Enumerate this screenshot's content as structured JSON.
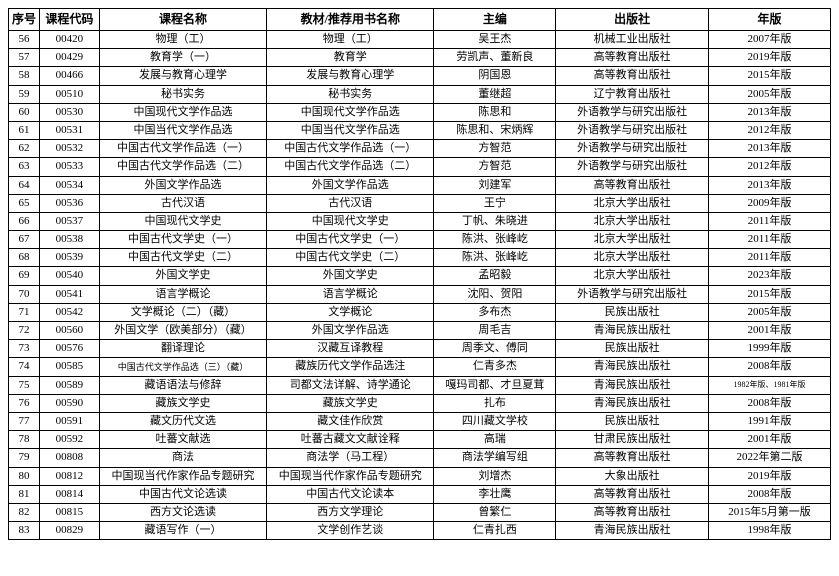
{
  "columns": [
    {
      "key": "seq",
      "label": "序号"
    },
    {
      "key": "code",
      "label": "课程代码"
    },
    {
      "key": "name",
      "label": "课程名称"
    },
    {
      "key": "book",
      "label": "教材/推荐用书名称"
    },
    {
      "key": "editor",
      "label": "主编"
    },
    {
      "key": "publisher",
      "label": "出版社"
    },
    {
      "key": "year",
      "label": "年版"
    }
  ],
  "rows": [
    {
      "seq": "56",
      "code": "00420",
      "name": "物理（工）",
      "book": "物理（工）",
      "editor": "吴王杰",
      "publisher": "机械工业出版社",
      "year": "2007年版"
    },
    {
      "seq": "57",
      "code": "00429",
      "name": "教育学（一）",
      "book": "教育学",
      "editor": "劳凯声、董新良",
      "publisher": "高等教育出版社",
      "year": "2019年版"
    },
    {
      "seq": "58",
      "code": "00466",
      "name": "发展与教育心理学",
      "book": "发展与教育心理学",
      "editor": "阴国恩",
      "publisher": "高等教育出版社",
      "year": "2015年版"
    },
    {
      "seq": "59",
      "code": "00510",
      "name": "秘书实务",
      "book": "秘书实务",
      "editor": "董继超",
      "publisher": "辽宁教育出版社",
      "year": "2005年版"
    },
    {
      "seq": "60",
      "code": "00530",
      "name": "中国现代文学作品选",
      "book": "中国现代文学作品选",
      "editor": "陈思和",
      "publisher": "外语教学与研究出版社",
      "year": "2013年版"
    },
    {
      "seq": "61",
      "code": "00531",
      "name": "中国当代文学作品选",
      "book": "中国当代文学作品选",
      "editor": "陈思和、宋炳辉",
      "publisher": "外语教学与研究出版社",
      "year": "2012年版"
    },
    {
      "seq": "62",
      "code": "00532",
      "name": "中国古代文学作品选（一）",
      "book": "中国古代文学作品选（一）",
      "editor": "方智范",
      "publisher": "外语教学与研究出版社",
      "year": "2013年版"
    },
    {
      "seq": "63",
      "code": "00533",
      "name": "中国古代文学作品选（二）",
      "book": "中国古代文学作品选（二）",
      "editor": "方智范",
      "publisher": "外语教学与研究出版社",
      "year": "2012年版"
    },
    {
      "seq": "64",
      "code": "00534",
      "name": "外国文学作品选",
      "book": "外国文学作品选",
      "editor": "刘建军",
      "publisher": "高等教育出版社",
      "year": "2013年版"
    },
    {
      "seq": "65",
      "code": "00536",
      "name": "古代汉语",
      "book": "古代汉语",
      "editor": "王宁",
      "publisher": "北京大学出版社",
      "year": "2009年版"
    },
    {
      "seq": "66",
      "code": "00537",
      "name": "中国现代文学史",
      "book": "中国现代文学史",
      "editor": "丁帆、朱晓进",
      "publisher": "北京大学出版社",
      "year": "2011年版"
    },
    {
      "seq": "67",
      "code": "00538",
      "name": "中国古代文学史（一）",
      "book": "中国古代文学史（一）",
      "editor": "陈洪、张峰屹",
      "publisher": "北京大学出版社",
      "year": "2011年版"
    },
    {
      "seq": "68",
      "code": "00539",
      "name": "中国古代文学史（二）",
      "book": "中国古代文学史（二）",
      "editor": "陈洪、张峰屹",
      "publisher": "北京大学出版社",
      "year": "2011年版"
    },
    {
      "seq": "69",
      "code": "00540",
      "name": "外国文学史",
      "book": "外国文学史",
      "editor": "孟昭毅",
      "publisher": "北京大学出版社",
      "year": "2023年版"
    },
    {
      "seq": "70",
      "code": "00541",
      "name": "语言学概论",
      "book": "语言学概论",
      "editor": "沈阳、贺阳",
      "publisher": "外语教学与研究出版社",
      "year": "2015年版"
    },
    {
      "seq": "71",
      "code": "00542",
      "name": "文学概论（二）（藏）",
      "book": "文学概论",
      "editor": "多布杰",
      "publisher": "民族出版社",
      "year": "2005年版"
    },
    {
      "seq": "72",
      "code": "00560",
      "name": "外国文学（欧美部分）（藏）",
      "book": "外国文学作品选",
      "editor": "周毛吉",
      "publisher": "青海民族出版社",
      "year": "2001年版"
    },
    {
      "seq": "73",
      "code": "00576",
      "name": "翻译理论",
      "book": "汉藏互译教程",
      "editor": "周季文、傅同",
      "publisher": "民族出版社",
      "year": "1999年版"
    },
    {
      "seq": "74",
      "code": "00585",
      "name": "中国古代文学作品选（三）（藏）",
      "nameSmall": true,
      "book": "藏族历代文学作品选注",
      "editor": "仁青多杰",
      "publisher": "青海民族出版社",
      "year": "2008年版"
    },
    {
      "seq": "75",
      "code": "00589",
      "name": "藏语语法与修辞",
      "book": "司都文法详解、诗学通论",
      "editor": "嘎玛司都、才旦夏茸",
      "publisher": "青海民族出版社",
      "year": "1982年版、1981年版",
      "yearTiny": true
    },
    {
      "seq": "76",
      "code": "00590",
      "name": "藏族文学史",
      "book": "藏族文学史",
      "editor": "扎布",
      "publisher": "青海民族出版社",
      "year": "2008年版"
    },
    {
      "seq": "77",
      "code": "00591",
      "name": "藏文历代文选",
      "book": "藏文佳作欣赏",
      "editor": "四川藏文学校",
      "publisher": "民族出版社",
      "year": "1991年版"
    },
    {
      "seq": "78",
      "code": "00592",
      "name": "吐蕃文献选",
      "book": "吐蕃古藏文文献诠释",
      "editor": "高瑞",
      "publisher": "甘肃民族出版社",
      "year": "2001年版"
    },
    {
      "seq": "79",
      "code": "00808",
      "name": "商法",
      "book": "商法学（马工程）",
      "editor": "商法学编写组",
      "publisher": "高等教育出版社",
      "year": "2022年第二版"
    },
    {
      "seq": "80",
      "code": "00812",
      "name": "中国现当代作家作品专题研究",
      "book": "中国现当代作家作品专题研究",
      "editor": "刘增杰",
      "publisher": "大象出版社",
      "year": "2019年版"
    },
    {
      "seq": "81",
      "code": "00814",
      "name": "中国古代文论选读",
      "book": "中国古代文论读本",
      "editor": "李壮鹰",
      "publisher": "高等教育出版社",
      "year": "2008年版"
    },
    {
      "seq": "82",
      "code": "00815",
      "name": "西方文论选读",
      "book": "西方文学理论",
      "editor": "曾繁仁",
      "publisher": "高等教育出版社",
      "year": "2015年5月第一版"
    },
    {
      "seq": "83",
      "code": "00829",
      "name": "藏语写作（一）",
      "book": "文学创作艺谈",
      "editor": "仁青扎西",
      "publisher": "青海民族出版社",
      "year": "1998年版"
    }
  ]
}
